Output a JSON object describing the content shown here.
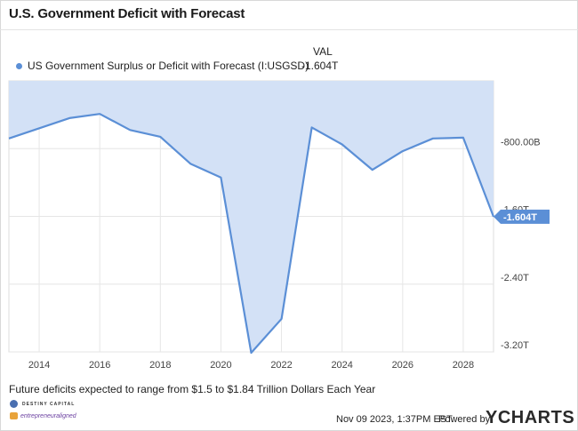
{
  "header": {
    "title": "U.S. Government Deficit with Forecast"
  },
  "legend": {
    "column_header": "VAL",
    "items": [
      {
        "label": "US Government Surplus or Deficit with Forecast (I:USGSD)",
        "value": "-1.604T",
        "color": "#5b8fd6"
      }
    ]
  },
  "chart_data": {
    "type": "area",
    "title": "U.S. Government Deficit with Forecast",
    "xlabel": "",
    "ylabel": "",
    "x": [
      2013,
      2015,
      2016,
      2017,
      2018,
      2019,
      2020,
      2021,
      2022,
      2023,
      2024,
      2025,
      2026,
      2027,
      2028,
      2029
    ],
    "series": [
      {
        "name": "US Government Surplus or Deficit with Forecast (I:USGSD)",
        "values": [
          -0.68,
          -0.44,
          -0.39,
          -0.58,
          -0.66,
          -0.98,
          -1.14,
          -3.21,
          -2.81,
          -0.55,
          -0.75,
          -1.05,
          -0.83,
          -0.68,
          -0.67,
          -1.604
        ]
      }
    ],
    "xlim": [
      2013,
      2029
    ],
    "ylim": [
      -3.2,
      0.0
    ],
    "y_ticks": [
      -0.8,
      -1.6,
      -2.4,
      -3.2
    ],
    "y_tick_labels": [
      "-800.00B",
      "-1.60T",
      "-2.40T",
      "-3.20T"
    ],
    "x_ticks": [
      2014,
      2016,
      2018,
      2020,
      2022,
      2024,
      2026,
      2028
    ],
    "x_tick_labels": [
      "2014",
      "2016",
      "2018",
      "2020",
      "2022",
      "2024",
      "2026",
      "2028"
    ],
    "last_value_label": "-1.604T",
    "grid": true,
    "line_color": "#5b8fd6",
    "fill_color": "#d3e1f6"
  },
  "caption": "Future deficits expected to range from $1.5 to $1.84 Trillion Dollars Each Year",
  "footer": {
    "date": "Nov 09 2023, 1:37PM EST.",
    "powered": "Powered by",
    "brand": "YCHARTS"
  },
  "logos": {
    "logo1": "DESTINY CAPITAL",
    "logo2": "entrepreneuraligned"
  }
}
